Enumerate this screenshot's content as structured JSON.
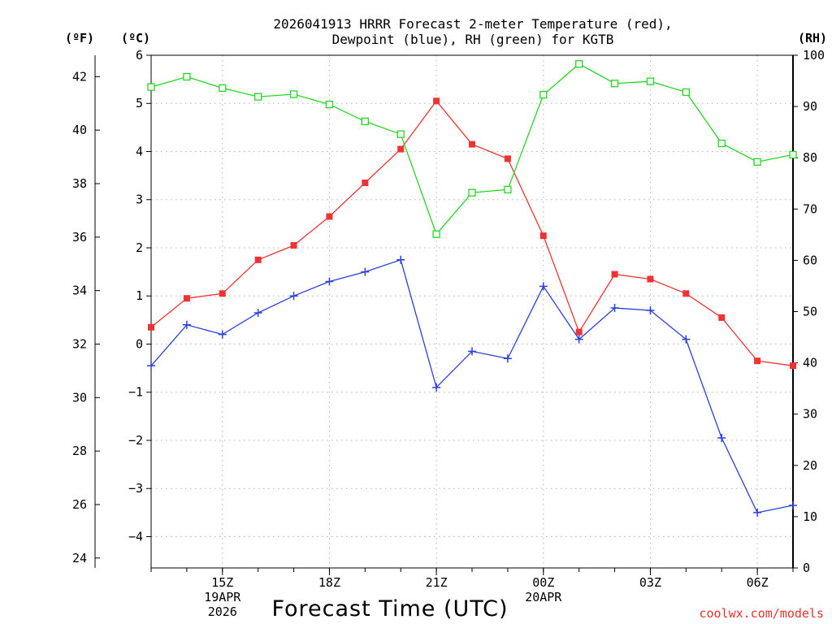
{
  "chart_data": {
    "type": "line",
    "title": [
      "2026041913 HRRR Forecast 2-meter Temperature (red),",
      "Dewpoint (blue), RH (green) for KGTB"
    ],
    "xlabel": "Forecast Time (UTC)",
    "credit": "coolwx.com/models",
    "unit_labels": {
      "fahrenheit": "(ºF)",
      "celsius": "(ºC)",
      "rh": "(RH)"
    },
    "x_hours": [
      13,
      14,
      15,
      16,
      17,
      18,
      19,
      20,
      21,
      22,
      23,
      24,
      25,
      26,
      27,
      28,
      29,
      30,
      31
    ],
    "x_ticks": [
      {
        "hour": 15,
        "lines": [
          "15Z",
          "19APR",
          "2026"
        ]
      },
      {
        "hour": 18,
        "lines": [
          "18Z"
        ]
      },
      {
        "hour": 21,
        "lines": [
          "21Z"
        ]
      },
      {
        "hour": 24,
        "lines": [
          "00Z",
          "20APR"
        ]
      },
      {
        "hour": 27,
        "lines": [
          "03Z"
        ]
      },
      {
        "hour": 30,
        "lines": [
          "06Z"
        ]
      }
    ],
    "celsius_axis": {
      "range": [
        -4.65,
        6.0
      ],
      "ticks": [
        "6",
        "5",
        "4",
        "3",
        "2",
        "1",
        "0",
        "−1",
        "−2",
        "−3",
        "−4"
      ]
    },
    "fahrenheit_axis": {
      "range": [
        23.63,
        42.8
      ],
      "ticks": [
        "42",
        "40",
        "38",
        "36",
        "34",
        "32",
        "30",
        "28",
        "26",
        "24"
      ]
    },
    "rh_axis": {
      "range": [
        0,
        100
      ],
      "ticks": [
        "100",
        "90",
        "80",
        "70",
        "60",
        "50",
        "40",
        "30",
        "20",
        "10",
        "0"
      ]
    },
    "series": [
      {
        "name": "2-meter Temperature",
        "axis": "celsius",
        "color": "#f03232",
        "marker": "filled-square",
        "values": [
          0.35,
          0.95,
          1.05,
          1.75,
          2.05,
          2.65,
          3.35,
          4.05,
          5.05,
          4.15,
          3.85,
          2.25,
          0.25,
          1.45,
          1.35,
          1.05,
          0.55,
          -0.35,
          -0.45
        ]
      },
      {
        "name": "Dewpoint",
        "axis": "celsius",
        "color": "#2a3fe0",
        "marker": "plus",
        "values": [
          -0.45,
          0.4,
          0.2,
          0.65,
          1.0,
          1.3,
          1.5,
          1.75,
          -0.9,
          -0.15,
          -0.3,
          1.2,
          0.1,
          0.75,
          0.7,
          0.1,
          -1.95,
          -3.5,
          -3.35
        ]
      },
      {
        "name": "RH",
        "axis": "rh",
        "color": "#22d822",
        "marker": "open-square",
        "values": [
          93.8,
          95.8,
          93.6,
          91.9,
          92.4,
          90.4,
          87.1,
          84.6,
          65.1,
          73.2,
          73.8,
          92.3,
          98.3,
          94.5,
          94.9,
          92.8,
          82.8,
          79.2,
          80.6
        ]
      }
    ]
  }
}
